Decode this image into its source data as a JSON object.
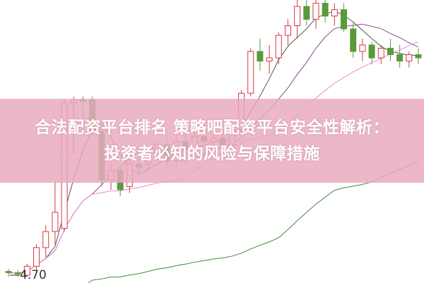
{
  "title_lines": [
    "合法配资平台排名 策略吧配资平台安全性解析：",
    "投资者必知的风险与保障措施"
  ],
  "price_label": "4.70",
  "colors": {
    "up": "#d9363e",
    "down": "#5a9a3a",
    "banner": "#e9aabe",
    "ma_short": "#555555",
    "ma_mid": "#8a4a8a",
    "ma_long": "#e58ad0",
    "ma_longest": "#3d8a3d"
  },
  "chart_data": {
    "type": "candlestick",
    "title": "",
    "ylim": [
      4.6,
      9.0
    ],
    "grid": false,
    "fields": [
      "open",
      "high",
      "low",
      "close"
    ],
    "candles": [
      [
        4.78,
        4.82,
        4.7,
        4.76
      ],
      [
        4.76,
        4.8,
        4.7,
        4.74
      ],
      [
        4.72,
        4.9,
        4.7,
        4.86
      ],
      [
        4.86,
        5.2,
        4.8,
        5.15
      ],
      [
        5.15,
        5.5,
        5.0,
        5.4
      ],
      [
        5.4,
        6.2,
        5.2,
        5.7
      ],
      [
        5.45,
        7.46,
        5.4,
        7.4
      ],
      [
        7.4,
        7.5,
        6.6,
        7.45
      ],
      [
        7.45,
        7.5,
        6.9,
        7.42
      ],
      [
        7.45,
        7.5,
        6.9,
        6.95
      ],
      [
        6.95,
        7.05,
        6.1,
        6.2
      ],
      [
        6.2,
        6.45,
        6.05,
        6.35
      ],
      [
        6.35,
        6.4,
        5.95,
        6.05
      ],
      [
        6.1,
        6.55,
        6.0,
        6.45
      ],
      [
        6.45,
        6.6,
        6.3,
        6.4
      ],
      [
        6.45,
        6.7,
        6.35,
        6.62
      ],
      [
        6.62,
        6.8,
        6.5,
        6.75
      ],
      [
        6.75,
        6.85,
        6.4,
        6.5
      ],
      [
        6.5,
        6.9,
        6.4,
        6.8
      ],
      [
        6.8,
        6.95,
        6.6,
        6.7
      ],
      [
        6.7,
        6.95,
        6.6,
        6.88
      ],
      [
        6.88,
        7.1,
        6.75,
        6.8
      ],
      [
        6.8,
        6.92,
        6.65,
        6.85
      ],
      [
        6.85,
        6.95,
        6.7,
        6.75
      ],
      [
        6.75,
        7.05,
        6.7,
        6.98
      ],
      [
        6.98,
        7.6,
        6.9,
        7.55
      ],
      [
        7.55,
        8.25,
        7.5,
        8.2
      ],
      [
        8.2,
        8.4,
        7.9,
        8.05
      ],
      [
        8.05,
        8.3,
        7.85,
        8.1
      ],
      [
        8.1,
        8.5,
        8.0,
        8.45
      ],
      [
        8.45,
        8.7,
        8.3,
        8.6
      ],
      [
        8.6,
        9.0,
        8.4,
        8.9
      ],
      [
        8.9,
        9.0,
        8.6,
        8.7
      ],
      [
        8.7,
        9.0,
        8.55,
        8.95
      ],
      [
        8.95,
        9.0,
        8.65,
        8.75
      ],
      [
        8.75,
        8.95,
        8.6,
        8.85
      ],
      [
        8.85,
        8.95,
        8.5,
        8.55
      ],
      [
        8.55,
        8.65,
        8.1,
        8.2
      ],
      [
        8.2,
        8.4,
        8.05,
        8.3
      ],
      [
        8.3,
        8.35,
        8.0,
        8.1
      ],
      [
        8.1,
        8.3,
        8.0,
        8.25
      ],
      [
        8.25,
        8.4,
        8.05,
        8.15
      ],
      [
        8.15,
        8.3,
        7.95,
        8.05
      ],
      [
        8.05,
        8.2,
        7.95,
        8.15
      ],
      [
        8.15,
        8.25,
        8.0,
        8.1
      ]
    ],
    "annotations": [
      "4.70"
    ]
  }
}
